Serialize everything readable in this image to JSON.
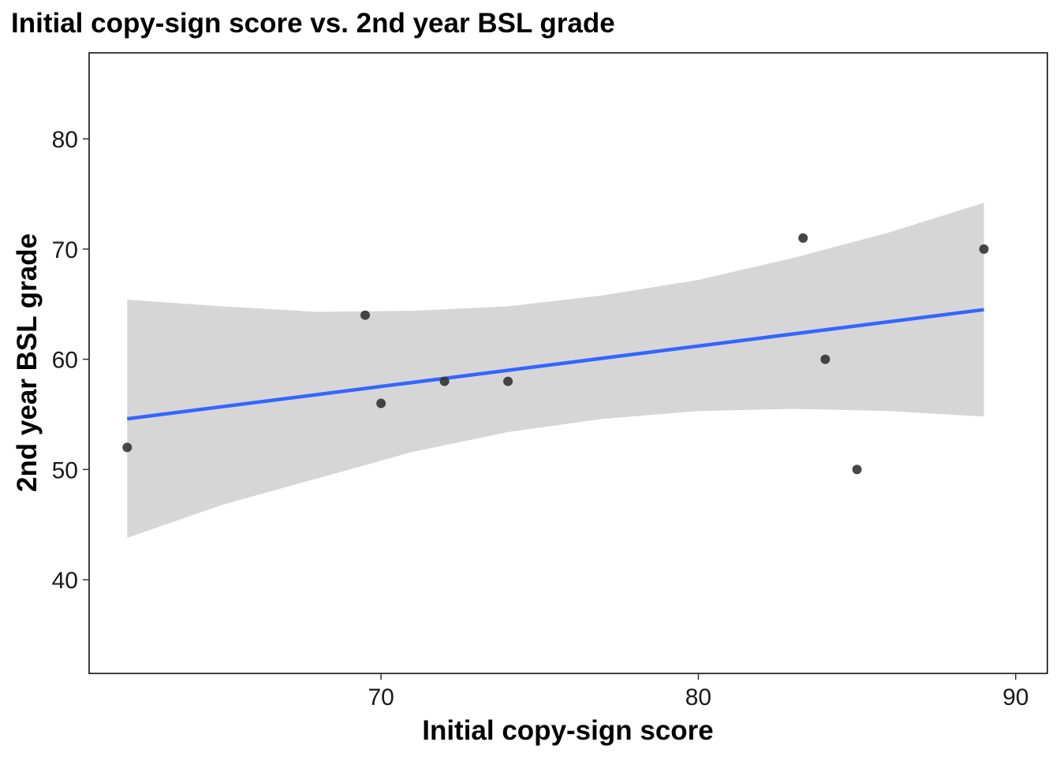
{
  "chart_data": {
    "type": "scatter",
    "title": "Initial copy-sign score vs. 2nd year BSL grade",
    "xlabel": "Initial copy-sign score",
    "ylabel": "2nd year BSL grade",
    "xlim": [
      60.8,
      91.0
    ],
    "ylim": [
      31.5,
      87.8
    ],
    "xticks": [
      70,
      80,
      90
    ],
    "yticks": [
      40,
      50,
      60,
      70,
      80
    ],
    "grid": false,
    "points": [
      {
        "x": 62.0,
        "y": 52
      },
      {
        "x": 69.5,
        "y": 64
      },
      {
        "x": 70.0,
        "y": 56
      },
      {
        "x": 72.0,
        "y": 58
      },
      {
        "x": 74.0,
        "y": 58
      },
      {
        "x": 83.3,
        "y": 71
      },
      {
        "x": 84.0,
        "y": 60
      },
      {
        "x": 85.0,
        "y": 50
      },
      {
        "x": 89.0,
        "y": 70
      }
    ],
    "smooth": {
      "method": "lm",
      "x": [
        62.0,
        89.0
      ],
      "y": [
        54.6,
        64.5
      ],
      "band_x": [
        62.0,
        65.0,
        68.0,
        71.0,
        74.0,
        77.0,
        80.0,
        83.0,
        86.0,
        89.0
      ],
      "band_lower": [
        43.8,
        46.8,
        49.2,
        51.6,
        53.4,
        54.6,
        55.3,
        55.5,
        55.3,
        54.8
      ],
      "band_upper": [
        65.4,
        64.8,
        64.3,
        64.4,
        64.8,
        65.8,
        67.2,
        69.2,
        71.5,
        74.2
      ]
    },
    "colors": {
      "line": "#3366FF",
      "band": "#D6D6D6",
      "point": "#333333"
    }
  }
}
